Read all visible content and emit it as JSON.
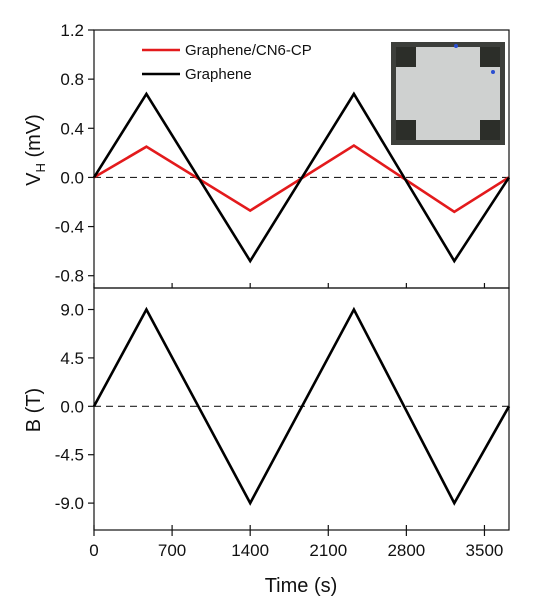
{
  "chart_data": [
    {
      "type": "line",
      "ylabel_main": "V",
      "ylabel_sub": "H",
      "ylabel_unit": " (mV)",
      "ylim": [
        -0.9,
        1.2
      ],
      "yticks": [
        "1.2",
        "0.8",
        "0.4",
        "0.0",
        "-0.4",
        "-0.8"
      ],
      "ytick_values": [
        1.2,
        0.8,
        0.4,
        0.0,
        -0.4,
        -0.8
      ],
      "zero_line": "dashed",
      "legend_position": "top",
      "series": [
        {
          "name": "Graphene/CN6-CP",
          "color": "#e31a1c",
          "x": [
            0,
            470,
            1400,
            2330,
            3230,
            3720
          ],
          "y": [
            0.0,
            0.25,
            -0.27,
            0.26,
            -0.28,
            0.0
          ]
        },
        {
          "name": "Graphene",
          "color": "#000000",
          "x": [
            0,
            470,
            1400,
            2330,
            3230,
            3720
          ],
          "y": [
            0.0,
            0.68,
            -0.68,
            0.68,
            -0.68,
            0.0
          ]
        }
      ],
      "inset": {
        "type": "photo",
        "description_icon": "sample-photo"
      }
    },
    {
      "type": "line",
      "ylabel": "B (T)",
      "ylim": [
        -11.5,
        11.0
      ],
      "yticks": [
        "9.0",
        "4.5",
        "0.0",
        "-4.5",
        "-9.0"
      ],
      "ytick_values": [
        9.0,
        4.5,
        0.0,
        -4.5,
        -9.0
      ],
      "zero_line": "dashed",
      "series": [
        {
          "color": "#000000",
          "x": [
            0,
            470,
            1400,
            2330,
            3230,
            3720
          ],
          "y": [
            0.0,
            9.0,
            -9.0,
            9.0,
            -9.0,
            0.0
          ]
        }
      ]
    }
  ],
  "x_axis": {
    "label": "Time (s)",
    "xlim": [
      0,
      3720
    ],
    "ticks": [
      "0",
      "700",
      "1400",
      "2100",
      "2800",
      "3500"
    ],
    "tick_values": [
      0,
      700,
      1400,
      2100,
      2800,
      3500
    ]
  }
}
